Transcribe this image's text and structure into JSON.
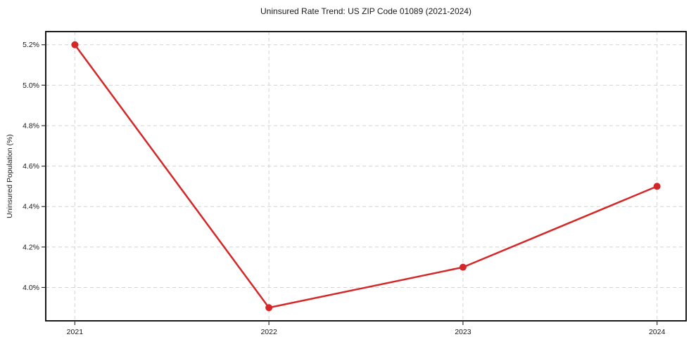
{
  "chart_data": {
    "type": "line",
    "title": "Uninsured Rate Trend: US ZIP Code 01089 (2021-2024)",
    "xlabel": "",
    "ylabel": "Uninsured Population (%)",
    "x": [
      2021,
      2022,
      2023,
      2024
    ],
    "x_tick_labels": [
      "2021",
      "2022",
      "2023",
      "2024"
    ],
    "values": [
      5.2,
      3.9,
      4.1,
      4.5
    ],
    "y_ticks": [
      4.0,
      4.2,
      4.4,
      4.6,
      4.8,
      5.0,
      5.2
    ],
    "y_tick_labels": [
      "4.0%",
      "4.2%",
      "4.4%",
      "4.6%",
      "4.8%",
      "5.0%",
      "5.2%"
    ],
    "xlim": [
      2020.85,
      2024.15
    ],
    "ylim": [
      3.835,
      5.265
    ],
    "grid": true,
    "legend": "none",
    "marker": "o",
    "colors": {
      "line": "#d62728",
      "marker": "#d62728",
      "grid": "#d3d3d3",
      "frame": "#000000",
      "text": "#1a1a1a",
      "background": "#ffffff"
    }
  }
}
